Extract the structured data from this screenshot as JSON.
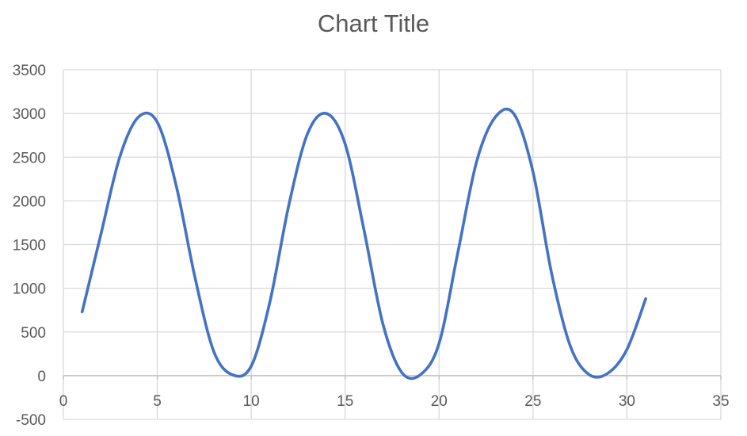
{
  "chart_data": {
    "type": "line",
    "title": "Chart Title",
    "xlabel": "",
    "ylabel": "",
    "xlim": [
      0,
      35
    ],
    "ylim": [
      -500,
      3500
    ],
    "x_ticks": [
      0,
      5,
      10,
      15,
      20,
      25,
      30,
      35
    ],
    "y_ticks": [
      -500,
      0,
      500,
      1000,
      1500,
      2000,
      2500,
      3000,
      3500
    ],
    "grid": true,
    "legend": "none",
    "series": [
      {
        "color": "#4472C4",
        "x": [
          1,
          2,
          3,
          4,
          5,
          6,
          7,
          8,
          9,
          10,
          11,
          12,
          13,
          14,
          15,
          16,
          17,
          18,
          19,
          20,
          21,
          22,
          23,
          24,
          25,
          26,
          27,
          28,
          29,
          30,
          31
        ],
        "y": [
          730,
          1620,
          2500,
          2960,
          2900,
          2180,
          1130,
          280,
          10,
          110,
          850,
          1950,
          2770,
          3000,
          2650,
          1670,
          600,
          40,
          10,
          370,
          1410,
          2450,
          2960,
          2990,
          2330,
          1160,
          330,
          10,
          30,
          300,
          880
        ]
      }
    ]
  }
}
